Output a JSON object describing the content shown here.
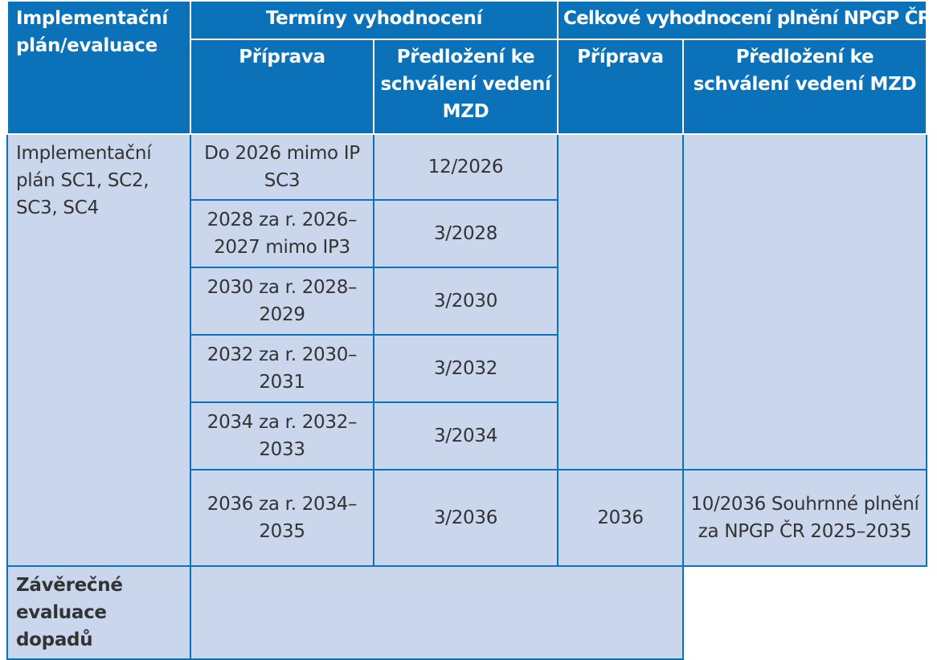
{
  "header": {
    "col1": "Implementační plán/evaluace",
    "group_terms": "Termíny vyhodnocení",
    "group_overall": "Celkové vyhodnocení plnění NPGP ČR",
    "terms_prep": "Příprava",
    "terms_submit": "Předložení ke schválení vedení MZD",
    "overall_prep": "Příprava",
    "overall_submit": "Předložení ke schválení vedení MZD"
  },
  "rows": [
    {
      "prep": "Do 2026 mimo IP SC3",
      "submit": "12/2026"
    },
    {
      "prep": "2028 za r. 2026–2027 mimo IP3",
      "submit": "3/2028"
    },
    {
      "prep": "2030 za r. 2028– 2029",
      "submit": "3/2030"
    },
    {
      "prep": "2032 za r. 2030–2031",
      "submit": "3/2032"
    },
    {
      "prep": "2034 za r. 2032–2033",
      "submit": "3/2034"
    },
    {
      "prep": "2036 za r. 2034–2035",
      "submit": "3/2036",
      "overall_prep": "2036",
      "overall_submit": "10/2036 Souhrnné plnění za NPGP ČR 2025–2035"
    }
  ],
  "group_label": "Implementační plán SC1, SC2, SC3, SC4",
  "final_label": "Závěrečné evaluace dopadů"
}
